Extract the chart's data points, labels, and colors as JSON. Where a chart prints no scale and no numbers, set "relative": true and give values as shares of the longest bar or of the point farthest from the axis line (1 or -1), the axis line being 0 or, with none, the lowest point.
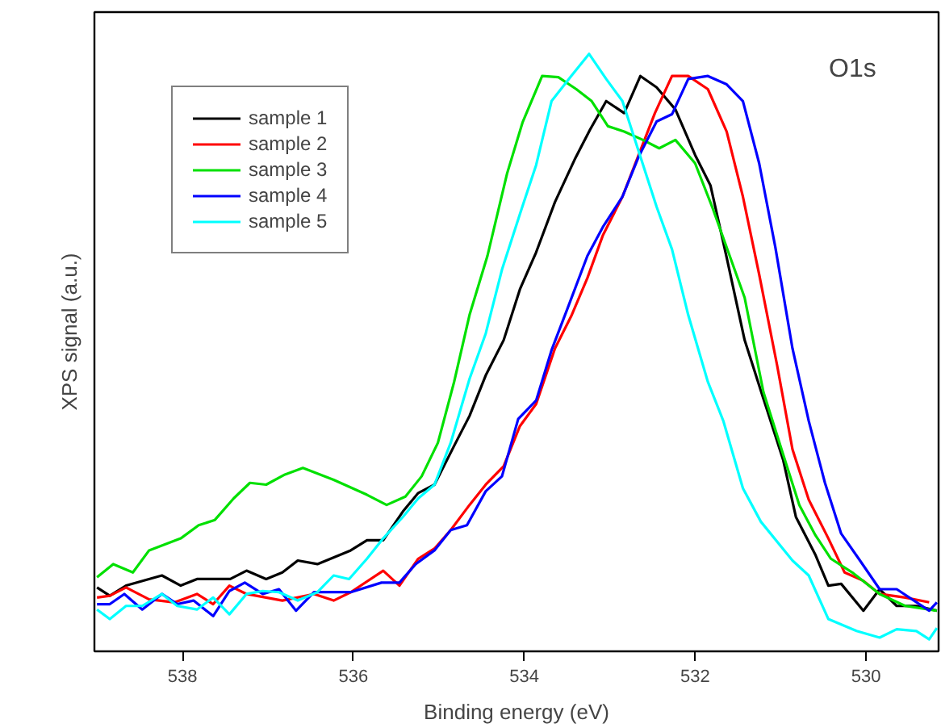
{
  "chart_data": {
    "type": "line",
    "relative": true,
    "xlabel": "Binding energy (eV)",
    "ylabel": "XPS signal (a.u.)",
    "xlim": [
      539.03,
      529.15
    ],
    "xticks": [
      538,
      536,
      534,
      532,
      530
    ],
    "grid": false,
    "legend": "top left",
    "marker": "none",
    "line_style": "solid",
    "annotations": [
      "O1s"
    ],
    "series": [
      {
        "name": "sample 1",
        "color": "#000000",
        "x": [
          539.0,
          538.85,
          538.66,
          538.24,
          538.02,
          537.83,
          537.44,
          537.25,
          537.02,
          536.83,
          536.65,
          536.42,
          536.03,
          535.84,
          535.65,
          535.42,
          535.24,
          535.05,
          534.82,
          534.64,
          534.45,
          534.24,
          534.05,
          533.86,
          533.64,
          533.41,
          533.23,
          533.04,
          532.83,
          532.64,
          532.45,
          532.23,
          532.0,
          531.82,
          531.63,
          531.42,
          531.2,
          530.97,
          530.82,
          530.59,
          530.44,
          530.29,
          530.03,
          529.84,
          529.64,
          529.41,
          529.17
        ],
        "values": [
          0.107,
          0.093,
          0.11,
          0.127,
          0.11,
          0.121,
          0.121,
          0.135,
          0.121,
          0.132,
          0.152,
          0.146,
          0.169,
          0.186,
          0.186,
          0.234,
          0.265,
          0.279,
          0.344,
          0.394,
          0.462,
          0.521,
          0.606,
          0.668,
          0.752,
          0.823,
          0.873,
          0.921,
          0.901,
          0.963,
          0.944,
          0.907,
          0.831,
          0.78,
          0.659,
          0.521,
          0.423,
          0.321,
          0.225,
          0.161,
          0.11,
          0.113,
          0.068,
          0.104,
          0.076,
          0.076,
          0.068
        ]
      },
      {
        "name": "sample 2",
        "color": "#ff0000",
        "x": [
          539.0,
          538.85,
          538.66,
          538.39,
          538.09,
          537.83,
          537.64,
          537.45,
          537.25,
          536.83,
          536.46,
          536.23,
          536.03,
          535.65,
          535.46,
          535.24,
          535.05,
          534.86,
          534.64,
          534.45,
          534.24,
          534.05,
          533.86,
          533.64,
          533.45,
          533.26,
          533.08,
          532.85,
          532.66,
          532.47,
          532.27,
          532.08,
          531.85,
          531.63,
          531.44,
          531.25,
          531.04,
          530.86,
          530.67,
          530.44,
          530.25,
          530.03,
          529.84,
          529.54,
          529.26
        ],
        "values": [
          0.09,
          0.093,
          0.107,
          0.087,
          0.082,
          0.096,
          0.079,
          0.11,
          0.096,
          0.085,
          0.096,
          0.085,
          0.099,
          0.135,
          0.11,
          0.155,
          0.172,
          0.203,
          0.245,
          0.279,
          0.31,
          0.377,
          0.414,
          0.507,
          0.561,
          0.625,
          0.696,
          0.761,
          0.831,
          0.901,
          0.963,
          0.963,
          0.941,
          0.87,
          0.761,
          0.631,
          0.479,
          0.338,
          0.254,
          0.189,
          0.132,
          0.118,
          0.096,
          0.09,
          0.082
        ]
      },
      {
        "name": "sample 3",
        "color": "#00e000",
        "x": [
          539.0,
          538.81,
          538.58,
          538.39,
          538.02,
          537.81,
          537.62,
          537.4,
          537.21,
          537.02,
          536.8,
          536.59,
          536.23,
          535.84,
          535.61,
          535.39,
          535.2,
          535.01,
          534.82,
          534.64,
          534.43,
          534.2,
          534.02,
          533.79,
          533.6,
          533.39,
          533.21,
          533.02,
          532.83,
          532.61,
          532.42,
          532.23,
          532.0,
          531.8,
          531.61,
          531.42,
          531.2,
          530.97,
          530.78,
          530.59,
          530.41,
          530.16,
          529.84,
          529.54,
          529.17
        ],
        "values": [
          0.124,
          0.146,
          0.132,
          0.169,
          0.189,
          0.211,
          0.22,
          0.256,
          0.282,
          0.279,
          0.296,
          0.307,
          0.287,
          0.262,
          0.245,
          0.259,
          0.293,
          0.349,
          0.451,
          0.563,
          0.662,
          0.8,
          0.885,
          0.963,
          0.961,
          0.941,
          0.921,
          0.879,
          0.87,
          0.856,
          0.842,
          0.856,
          0.817,
          0.744,
          0.668,
          0.592,
          0.434,
          0.33,
          0.245,
          0.194,
          0.155,
          0.132,
          0.096,
          0.076,
          0.068
        ]
      },
      {
        "name": "sample 4",
        "color": "#0000ff",
        "x": [
          539.0,
          538.85,
          538.68,
          538.47,
          538.24,
          538.06,
          537.87,
          537.64,
          537.45,
          537.27,
          537.06,
          536.87,
          536.67,
          536.46,
          536.03,
          535.67,
          535.46,
          535.27,
          535.05,
          534.86,
          534.67,
          534.45,
          534.26,
          534.07,
          533.86,
          533.68,
          533.49,
          533.26,
          533.08,
          532.85,
          532.66,
          532.45,
          532.27,
          532.08,
          531.85,
          531.63,
          531.44,
          531.25,
          531.06,
          530.86,
          530.67,
          530.48,
          530.29,
          530.07,
          529.84,
          529.64,
          529.26,
          529.17
        ],
        "values": [
          0.079,
          0.079,
          0.096,
          0.07,
          0.096,
          0.079,
          0.085,
          0.059,
          0.101,
          0.115,
          0.096,
          0.104,
          0.068,
          0.099,
          0.099,
          0.115,
          0.115,
          0.146,
          0.169,
          0.203,
          0.211,
          0.268,
          0.293,
          0.389,
          0.42,
          0.504,
          0.575,
          0.662,
          0.71,
          0.761,
          0.828,
          0.887,
          0.899,
          0.958,
          0.963,
          0.949,
          0.921,
          0.817,
          0.676,
          0.507,
          0.386,
          0.282,
          0.197,
          0.152,
          0.104,
          0.104,
          0.068,
          0.082
        ]
      },
      {
        "name": "sample 5",
        "color": "#00ffff",
        "x": [
          539.0,
          538.85,
          538.66,
          538.47,
          538.24,
          538.06,
          537.83,
          537.64,
          537.45,
          537.25,
          537.06,
          536.87,
          536.65,
          536.42,
          536.23,
          536.05,
          535.84,
          535.65,
          535.42,
          535.24,
          535.05,
          534.86,
          534.64,
          534.45,
          534.26,
          534.05,
          533.86,
          533.68,
          533.45,
          533.24,
          533.04,
          532.85,
          532.66,
          532.45,
          532.27,
          532.08,
          531.85,
          531.67,
          531.44,
          531.23,
          530.86,
          530.67,
          530.44,
          530.11,
          529.84,
          529.64,
          529.41,
          529.26,
          529.17
        ],
        "values": [
          0.07,
          0.054,
          0.076,
          0.076,
          0.096,
          0.076,
          0.07,
          0.09,
          0.062,
          0.096,
          0.101,
          0.099,
          0.085,
          0.099,
          0.127,
          0.121,
          0.155,
          0.189,
          0.225,
          0.256,
          0.279,
          0.349,
          0.456,
          0.532,
          0.639,
          0.732,
          0.814,
          0.921,
          0.963,
          1.0,
          0.958,
          0.921,
          0.837,
          0.744,
          0.673,
          0.563,
          0.451,
          0.386,
          0.273,
          0.217,
          0.152,
          0.127,
          0.054,
          0.034,
          0.023,
          0.037,
          0.034,
          0.02,
          0.039
        ]
      }
    ]
  }
}
